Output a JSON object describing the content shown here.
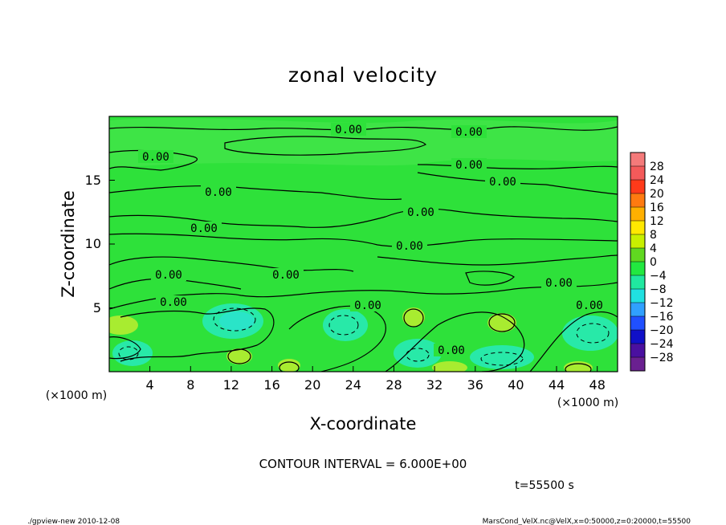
{
  "chart_data": {
    "type": "heatmap",
    "title": "zonal velocity",
    "xlabel": "X-coordinate",
    "ylabel": "Z-coordinate",
    "x_unit": "(×1000 m)",
    "y_unit": "(×1000 m)",
    "x_ticks": [
      "4",
      "8",
      "12",
      "16",
      "20",
      "24",
      "28",
      "32",
      "36",
      "40",
      "44",
      "48"
    ],
    "y_ticks": [
      "5",
      "10",
      "15"
    ],
    "xlim": [
      0,
      50
    ],
    "ylim": [
      0,
      20
    ],
    "colorbar_ticks": [
      "28",
      "24",
      "20",
      "16",
      "12",
      "8",
      "4",
      "0",
      "−4",
      "−8",
      "−12",
      "−16",
      "−20",
      "−24",
      "−28"
    ],
    "colorbar_colors": [
      "#f47a7a",
      "#f45a5a",
      "#ff3a1a",
      "#ff7a10",
      "#ffb000",
      "#ffe800",
      "#c8f000",
      "#60d820",
      "#22e840",
      "#20e8a0",
      "#20e0e0",
      "#30a0ff",
      "#2050ff",
      "#1010c8",
      "#4a10a0",
      "#6a2090"
    ],
    "contour_labels": [
      "0.00",
      "0.00",
      "0.00",
      "0.00",
      "0.00",
      "0.00",
      "0.00",
      "0.00",
      "0.00",
      "0.00",
      "0.00",
      "0.00",
      "0.00",
      "0.00",
      "0.00",
      "0.00"
    ],
    "contour_interval_text": "CONTOUR INTERVAL = 6.000E+00",
    "time_text": "t=55500 s"
  },
  "footer": {
    "left": "./gpview-new  2010-12-08",
    "right": "MarsCond_VelX.nc@VelX,x=0:50000,z=0:20000,t=55500"
  }
}
